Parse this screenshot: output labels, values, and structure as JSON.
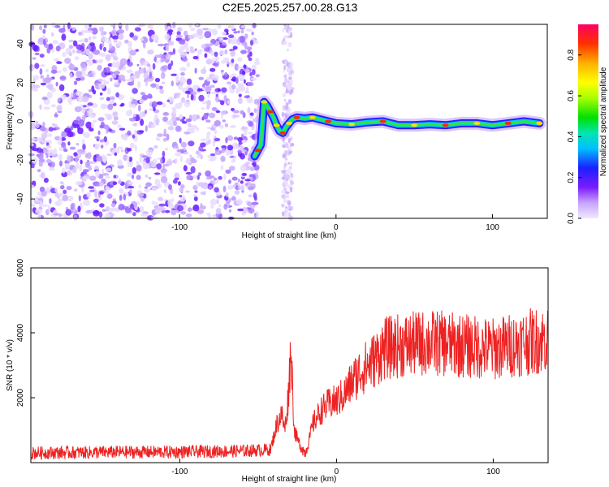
{
  "title": "C2E5.2025.257.00.28.G13",
  "chart_data": [
    {
      "type": "heatmap",
      "xlabel": "Height of straight line (km)",
      "ylabel": "Frequency (Hz)",
      "xlim": [
        -195,
        135
      ],
      "ylim": [
        -50,
        50
      ],
      "xticks": [
        -100,
        0,
        100
      ],
      "yticks": [
        -40,
        -20,
        0,
        20,
        40
      ],
      "xtick_labels": [
        "-100",
        "0",
        "100"
      ],
      "ytick_labels": [
        "-40",
        "-20",
        "0",
        "20",
        "40"
      ],
      "noise_region_km": [
        -195,
        -50
      ],
      "noise_strip_km": [
        -34,
        -28
      ],
      "track": [
        [
          -52,
          -18
        ],
        [
          -50,
          -15
        ],
        [
          -48,
          -12
        ],
        [
          -46,
          10
        ],
        [
          -44,
          8
        ],
        [
          -42,
          5
        ],
        [
          -40,
          2
        ],
        [
          -38,
          -2
        ],
        [
          -36,
          -5
        ],
        [
          -34,
          -6
        ],
        [
          -32,
          -3
        ],
        [
          -30,
          -1
        ],
        [
          -28,
          1
        ],
        [
          -25,
          2
        ],
        [
          -20,
          1.5
        ],
        [
          -15,
          2
        ],
        [
          -10,
          1
        ],
        [
          -5,
          0
        ],
        [
          0,
          -1
        ],
        [
          10,
          -1.5
        ],
        [
          20,
          -0.5
        ],
        [
          30,
          0
        ],
        [
          40,
          -2
        ],
        [
          50,
          -2
        ],
        [
          60,
          -1.5
        ],
        [
          70,
          -2
        ],
        [
          80,
          -1
        ],
        [
          90,
          -1
        ],
        [
          100,
          -2
        ],
        [
          110,
          -1
        ],
        [
          120,
          0
        ],
        [
          130,
          -1
        ]
      ],
      "colorbar": {
        "label": "Normalized spectral amplitude",
        "range": [
          0.0,
          0.95
        ],
        "ticks": [
          0.0,
          0.2,
          0.4,
          0.6,
          0.8
        ],
        "tick_labels": [
          "0.0",
          "0.2",
          "0.4",
          "0.6",
          "0.8"
        ]
      }
    },
    {
      "type": "line",
      "xlabel": "Height of straight line (km)",
      "ylabel": "SNR (10 * v/v)",
      "xlim": [
        -195,
        135
      ],
      "ylim": [
        0,
        6000
      ],
      "xticks": [
        -100,
        0,
        100
      ],
      "yticks": [
        2000,
        4000,
        6000
      ],
      "xtick_labels": [
        "-100",
        "0",
        "100"
      ],
      "ytick_labels": [
        "2000",
        "4000",
        "6000"
      ],
      "color": "#ee2222",
      "profile": [
        [
          -195,
          300
        ],
        [
          -150,
          320
        ],
        [
          -100,
          330
        ],
        [
          -60,
          360
        ],
        [
          -42,
          400
        ],
        [
          -38,
          1200
        ],
        [
          -35,
          1500
        ],
        [
          -33,
          1000
        ],
        [
          -31,
          1900
        ],
        [
          -29,
          3600
        ],
        [
          -27,
          1000
        ],
        [
          -24,
          600
        ],
        [
          -20,
          300
        ],
        [
          -18,
          600
        ],
        [
          -15,
          1200
        ],
        [
          -10,
          1600
        ],
        [
          -5,
          1800
        ],
        [
          0,
          1900
        ],
        [
          5,
          2100
        ],
        [
          10,
          2500
        ],
        [
          15,
          2800
        ],
        [
          20,
          3000
        ],
        [
          25,
          3200
        ],
        [
          30,
          3500
        ],
        [
          40,
          3600
        ],
        [
          60,
          3700
        ],
        [
          80,
          3600
        ],
        [
          100,
          3500
        ],
        [
          120,
          3700
        ],
        [
          135,
          3800
        ]
      ]
    }
  ]
}
